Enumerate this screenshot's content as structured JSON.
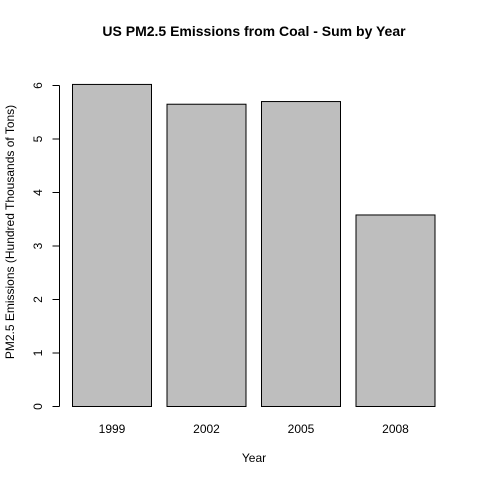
{
  "chart_data": {
    "type": "bar",
    "title": "US PM2.5 Emissions from Coal - Sum by Year",
    "xlabel": "Year",
    "ylabel": "PM2.5 Emissions (Hundred Thousands of Tons)",
    "categories": [
      "1999",
      "2002",
      "2005",
      "2008"
    ],
    "values": [
      6.02,
      5.65,
      5.7,
      3.58
    ],
    "ylim": [
      0,
      6
    ],
    "yticks": [
      "0",
      "1",
      "2",
      "3",
      "4",
      "5",
      "6"
    ],
    "grid": false,
    "legend": "none",
    "bar_color": "#bebebe",
    "border_color": "#000000"
  }
}
